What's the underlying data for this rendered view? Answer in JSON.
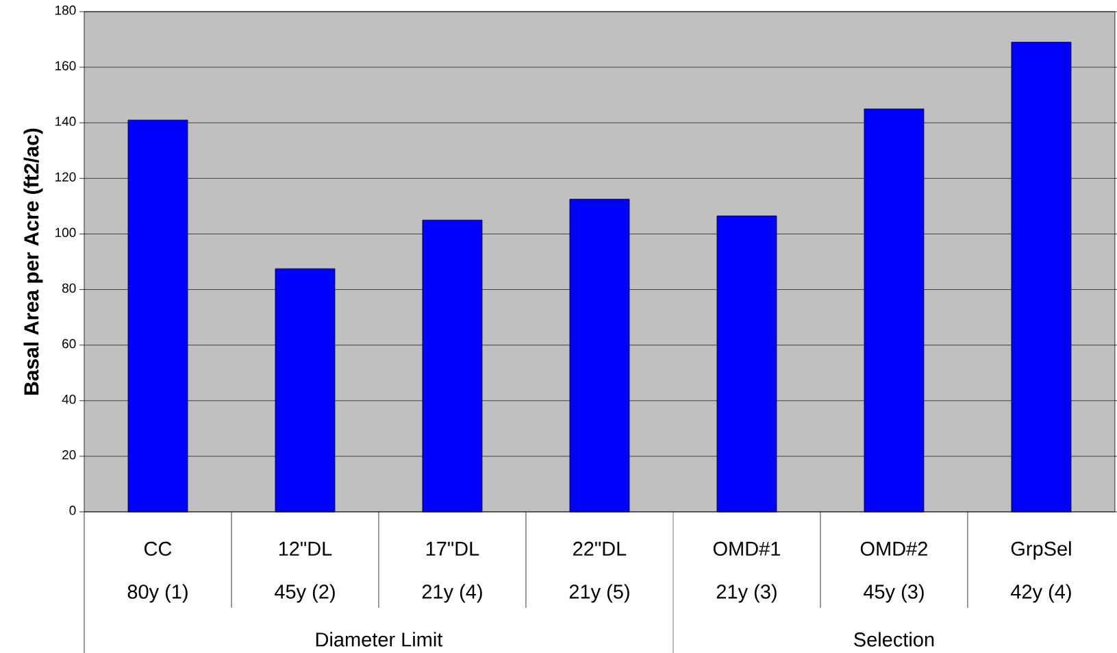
{
  "chart_data": {
    "type": "bar",
    "ylabel": "Basal Area per Acre (ft2/ac)",
    "categories": [
      "CC",
      "12\"DL",
      "17\"DL",
      "22\"DL",
      "OMD#1",
      "OMD#2",
      "GrpSel"
    ],
    "values": [
      141,
      87.5,
      105,
      112.5,
      106.5,
      145,
      169
    ],
    "color": "#0000ff",
    "ylim": [
      0,
      180
    ],
    "yticks": [
      0,
      20,
      40,
      60,
      80,
      100,
      120,
      140,
      160,
      180
    ],
    "grid": "y",
    "annotations": [
      "80y (1)",
      "45y (2)",
      "21y (4)",
      "21y (5)",
      "21y (3)",
      "45y (3)",
      "42y (4)",
      "Diameter Limit",
      "Selection"
    ]
  }
}
